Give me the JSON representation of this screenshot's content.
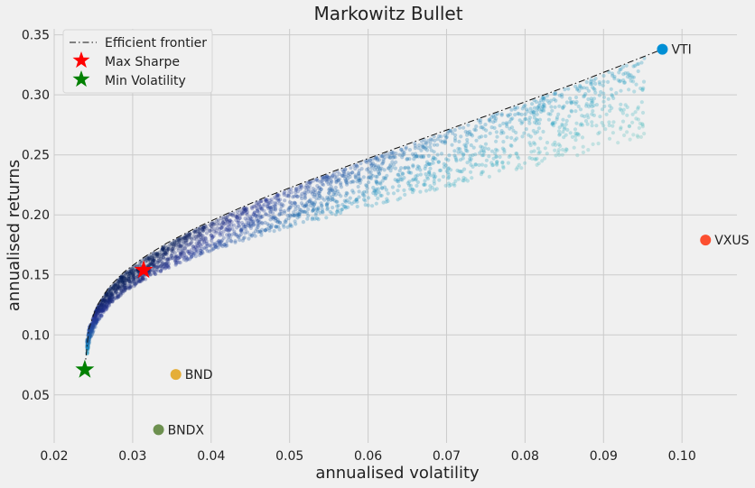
{
  "chart_data": {
    "type": "scatter",
    "title": "Markowitz Bullet",
    "xlabel": "annualised volatility",
    "ylabel": "annualised returns",
    "xlim": [
      0.02,
      0.107
    ],
    "ylim": [
      0.01,
      0.355
    ],
    "xticks": [
      "0.02",
      "0.03",
      "0.04",
      "0.05",
      "0.06",
      "0.07",
      "0.08",
      "0.09",
      "0.10"
    ],
    "yticks": [
      "0.05",
      "0.10",
      "0.15",
      "0.20",
      "0.25",
      "0.30",
      "0.35"
    ],
    "grid": true,
    "legend_position": "top-left",
    "legend": [
      "Efficient frontier",
      "Max Sharpe",
      "Min Volatility"
    ],
    "efficient_frontier": {
      "vol": [
        0.0239,
        0.024,
        0.0245,
        0.0255,
        0.027,
        0.029,
        0.0315,
        0.0345,
        0.038,
        0.042,
        0.047,
        0.053,
        0.06,
        0.068,
        0.077,
        0.087,
        0.0975
      ],
      "ret": [
        0.072,
        0.09,
        0.108,
        0.125,
        0.14,
        0.153,
        0.165,
        0.177,
        0.189,
        0.201,
        0.215,
        0.23,
        0.247,
        0.266,
        0.287,
        0.311,
        0.338
      ]
    },
    "max_sharpe": {
      "vol": 0.0314,
      "ret": 0.154
    },
    "min_volatility": {
      "vol": 0.0239,
      "ret": 0.071
    },
    "assets": [
      {
        "name": "VTI",
        "vol": 0.0975,
        "ret": 0.338,
        "color": "#008fd5"
      },
      {
        "name": "VXUS",
        "vol": 0.103,
        "ret": 0.179,
        "color": "#fc4f30"
      },
      {
        "name": "BND",
        "vol": 0.0355,
        "ret": 0.067,
        "color": "#e5ae38"
      },
      {
        "name": "BNDX",
        "vol": 0.0333,
        "ret": 0.021,
        "color": "#6d904f"
      }
    ],
    "random_portfolios": {
      "count": 2600,
      "colormap": "YlGnBu",
      "color_by": "sharpe_ratio",
      "alpha": 0.3
    }
  }
}
